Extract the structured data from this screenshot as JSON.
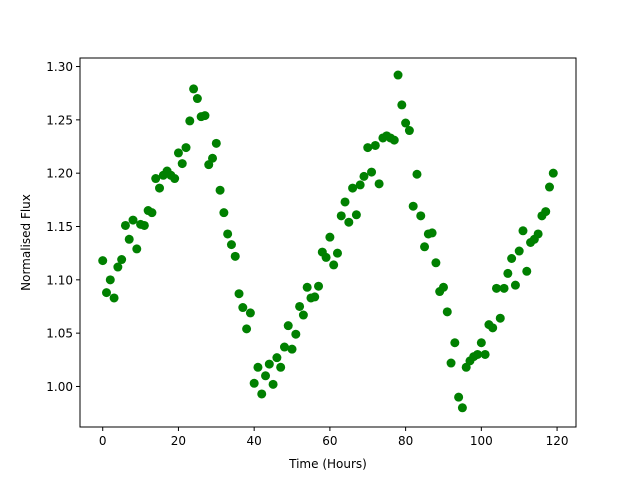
{
  "chart_data": {
    "type": "scatter",
    "title": "",
    "xlabel": "Time (Hours)",
    "ylabel": "Normalised Flux",
    "xlim": [
      -6,
      125
    ],
    "ylim": [
      0.962,
      1.308
    ],
    "xticks": [
      0,
      20,
      40,
      60,
      80,
      100,
      120
    ],
    "yticks": [
      1.0,
      1.05,
      1.1,
      1.15,
      1.2,
      1.25,
      1.3
    ],
    "xtick_labels": [
      "0",
      "20",
      "40",
      "60",
      "80",
      "100",
      "120"
    ],
    "ytick_labels": [
      "1.00",
      "1.05",
      "1.10",
      "1.15",
      "1.20",
      "1.25",
      "1.30"
    ],
    "grid": false,
    "legend": "none",
    "marker_color": "#008000",
    "series": [
      {
        "x": [
          0,
          1,
          2,
          3,
          4,
          5,
          6,
          7,
          8,
          9,
          10,
          11,
          12,
          13,
          14,
          15,
          16,
          17,
          18,
          19,
          20,
          21,
          22,
          23,
          24,
          25,
          26,
          27,
          28,
          29,
          30,
          31,
          32,
          33,
          34,
          35,
          36,
          37,
          38,
          39,
          40,
          41,
          42,
          43,
          44,
          45,
          46,
          47,
          48,
          49,
          50,
          51,
          52,
          53,
          54,
          55,
          56,
          57,
          58,
          59,
          60,
          61,
          62,
          63,
          64,
          65,
          66,
          67,
          68,
          69,
          70,
          71,
          72,
          73,
          74,
          75,
          76,
          77,
          78,
          79,
          80,
          81,
          82,
          83,
          84,
          85,
          86,
          87,
          88,
          89,
          90,
          91,
          92,
          93,
          94,
          95,
          96,
          97,
          98,
          99,
          100,
          101,
          102,
          103,
          104,
          105,
          106,
          107,
          108,
          109,
          110,
          111,
          112,
          113,
          114,
          115,
          116,
          117,
          118,
          119
        ],
        "y": [
          1.118,
          1.088,
          1.1,
          1.083,
          1.112,
          1.119,
          1.151,
          1.138,
          1.156,
          1.129,
          1.152,
          1.151,
          1.165,
          1.163,
          1.195,
          1.186,
          1.198,
          1.202,
          1.198,
          1.195,
          1.219,
          1.209,
          1.224,
          1.249,
          1.279,
          1.27,
          1.253,
          1.254,
          1.208,
          1.214,
          1.228,
          1.184,
          1.163,
          1.143,
          1.133,
          1.122,
          1.087,
          1.074,
          1.054,
          1.069,
          1.003,
          1.018,
          0.993,
          1.01,
          1.021,
          1.002,
          1.027,
          1.018,
          1.037,
          1.057,
          1.035,
          1.049,
          1.075,
          1.067,
          1.093,
          1.083,
          1.084,
          1.094,
          1.126,
          1.121,
          1.14,
          1.114,
          1.125,
          1.16,
          1.173,
          1.154,
          1.186,
          1.161,
          1.189,
          1.197,
          1.224,
          1.201,
          1.226,
          1.19,
          1.233,
          1.235,
          1.233,
          1.231,
          1.292,
          1.264,
          1.247,
          1.24,
          1.169,
          1.199,
          1.16,
          1.131,
          1.143,
          1.144,
          1.116,
          1.089,
          1.093,
          1.07,
          1.022,
          1.041,
          0.99,
          0.98,
          1.018,
          1.024,
          1.028,
          1.03,
          1.041,
          1.03,
          1.058,
          1.055,
          1.092,
          1.064,
          1.092,
          1.106,
          1.12,
          1.095,
          1.127,
          1.146,
          1.108,
          1.135,
          1.138,
          1.143,
          1.16,
          1.164,
          1.187,
          1.2
        ]
      }
    ]
  }
}
